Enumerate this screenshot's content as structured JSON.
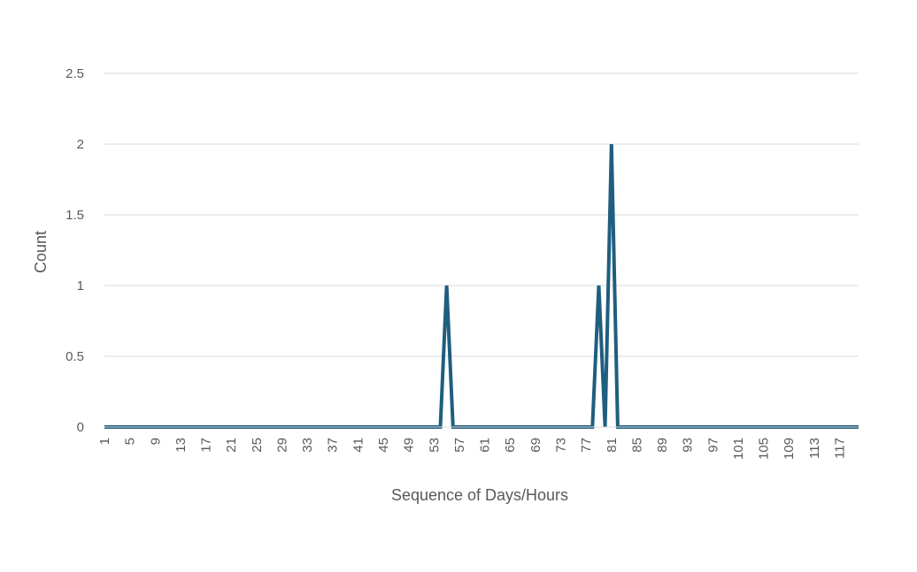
{
  "chart_data": {
    "type": "line",
    "title": "",
    "xlabel": "Sequence of Days/Hours",
    "ylabel": "Count",
    "ylim": [
      0,
      2.5
    ],
    "yticks": [
      "0",
      "0.5",
      "1",
      "1.5",
      "2",
      "2.5"
    ],
    "x_range": [
      1,
      120
    ],
    "xtick_step": 4,
    "grid": true,
    "legend": "none",
    "series": [
      {
        "color": "#1f5e7f",
        "points": [
          [
            1,
            0
          ],
          [
            54,
            0
          ],
          [
            55,
            1
          ],
          [
            56,
            0
          ],
          [
            78,
            0
          ],
          [
            79,
            1
          ],
          [
            80,
            0
          ],
          [
            81,
            2
          ],
          [
            82,
            0
          ],
          [
            120,
            0
          ]
        ]
      }
    ]
  }
}
